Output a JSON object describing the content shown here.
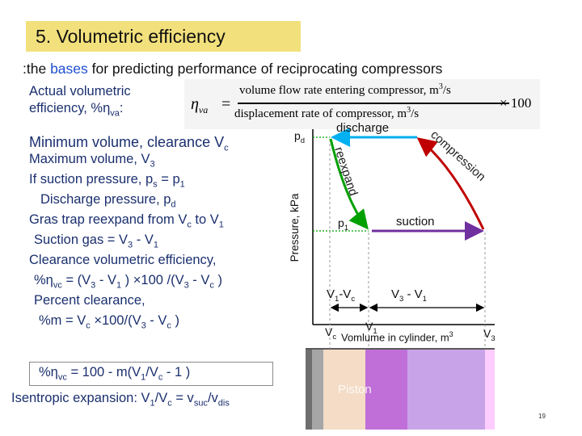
{
  "slide": {
    "title": "5. Volumetric efficiency",
    "subtitle_prefix": ":the ",
    "subtitle_highlight": "bases",
    "subtitle_rest": " for predicting performance of reciprocating compressors",
    "page_number": "19"
  },
  "left": {
    "actual_line1": "Actual volumetric",
    "actual_line2_pre": "efficiency, %η",
    "actual_line2_sub": "va",
    "actual_line2_post": ":",
    "min_pre": "Minimum volume, clearance V",
    "min_sub": "c",
    "max_pre": "Maximum volume, V",
    "max_sub": "3",
    "suction_pre": "If suction pressure, p",
    "suction_sub1": "s",
    "suction_mid": " = p",
    "suction_sub2": "1",
    "discharge_pre": "Discharge pressure, p",
    "discharge_sub": "d",
    "gras_pre": "Gras trap reexpand from V",
    "gras_sub1": "c",
    "gras_mid": "  to V",
    "gras_sub2": "1",
    "sgas_pre": "Suction gas = V",
    "sgas_sub1": "3",
    "sgas_mid": "  - V",
    "sgas_sub2": "1",
    "clear_title": "Clearance volumetric efficiency,",
    "clear_f1": "%η",
    "clear_f1_sub": "vc",
    "clear_f2": " = (V",
    "clear_f2_sub": "3",
    "clear_f3": " - V",
    "clear_f3_sub": "1",
    "clear_f4": " ) ×100 /(V",
    "clear_f4_sub": "3",
    "clear_f5": " - V",
    "clear_f5_sub": "c",
    "clear_f6": " )",
    "percent_title": "Percent clearance,",
    "pm_f1": "%m = V",
    "pm_f1_sub": "c",
    "pm_f2": " ×100/(V",
    "pm_f2_sub": "3",
    "pm_f3": " - V",
    "pm_f3_sub": "c",
    "pm_f4": " )",
    "boxed_f1": "%η",
    "boxed_f1_sub": "vc",
    "boxed_f2": " = 100 - m(V",
    "boxed_f2_sub": "1",
    "boxed_f3": "/V",
    "boxed_f3_sub": "c",
    "boxed_f4": " - 1 )",
    "isen_f1": "Isentropic expansion: V",
    "isen_f1_sub": "1",
    "isen_f2": "/V",
    "isen_f2_sub": "c",
    "isen_f3": " = v",
    "isen_f3_sub": "suc",
    "isen_f4": "/v",
    "isen_f4_sub": "dis"
  },
  "formula": {
    "eta": "η",
    "eta_sub": "va",
    "equals": "=",
    "numerator": "volume flow rate entering compressor, m",
    "num_sup": "3",
    "num_tail": "/s",
    "denominator": "displacement rate of compressor, m",
    "den_sup": "3",
    "den_tail": "/s",
    "times": "× 100"
  },
  "diagram": {
    "y_axis_label": "Pressure, kPa",
    "pd_label": "p",
    "pd_sub": "d",
    "p1_label": "p",
    "p1_sub": "1",
    "discharge": "discharge",
    "suction": "suction",
    "reexpand": "reexpand",
    "compression": "compression",
    "v1vc_a": "V",
    "v1vc_a_sub": "1",
    "v1vc_b": "-V",
    "v1vc_b_sub": "c",
    "v3v1_a": "V",
    "v3v1_a_sub": "3",
    "v3v1_b": " - V",
    "v3v1_b_sub": "1",
    "vc_label": "V",
    "vc_sub": "c",
    "v1_label": "V",
    "v1_sub": "1",
    "x_axis_label": "Vomlume in cylinder, m",
    "x_axis_sup": "3",
    "v3_label": "V",
    "v3_sub": "3",
    "piston": "Piston",
    "colors": {
      "discharge": "#00b0f0",
      "compression": "#c00000",
      "suction": "#7030a0",
      "reexpand": "#00a000",
      "title_box": "#f2e07c",
      "cylinder_pink": "#ffccff",
      "cylinder_purple": "#c06fd8",
      "cylinder_lavender": "#c9a3e8",
      "cylinder_beige": "#f4dcc6"
    }
  }
}
